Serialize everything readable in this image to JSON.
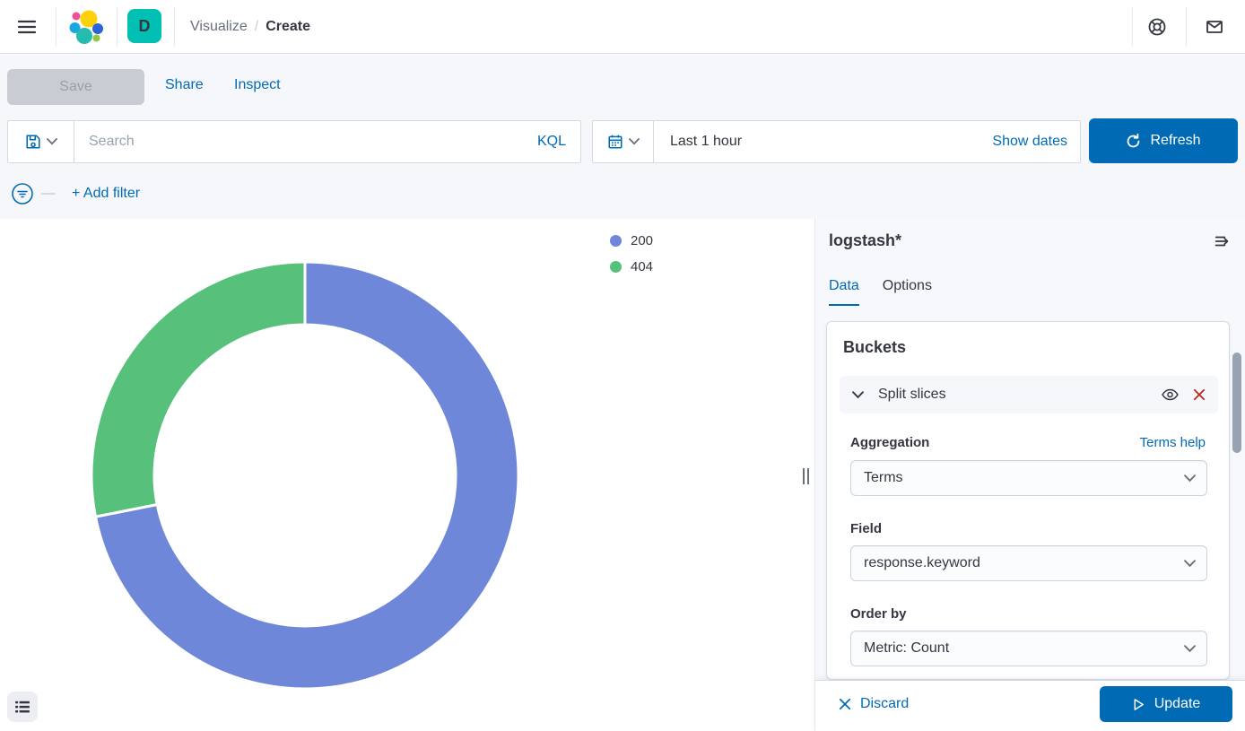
{
  "header": {
    "breadcrumb": {
      "parent": "Visualize",
      "separator": "/",
      "current": "Create"
    },
    "space_initial": "D"
  },
  "toolbar": {
    "save_label": "Save",
    "share_label": "Share",
    "inspect_label": "Inspect"
  },
  "query_bar": {
    "search_placeholder": "Search",
    "kql_label": "KQL",
    "time_range": "Last 1 hour",
    "show_dates_label": "Show dates",
    "refresh_label": "Refresh"
  },
  "filter_bar": {
    "add_filter_label": "+ Add filter"
  },
  "sidebar": {
    "title": "logstash*",
    "tabs": [
      {
        "label": "Data",
        "active": true
      },
      {
        "label": "Options",
        "active": false
      }
    ],
    "buckets": {
      "heading": "Buckets",
      "bucket_row_label": "Split slices",
      "fields": [
        {
          "label": "Aggregation",
          "value": "Terms",
          "help": "Terms help"
        },
        {
          "label": "Field",
          "value": "response.keyword"
        },
        {
          "label": "Order by",
          "value": "Metric: Count"
        }
      ]
    },
    "footer": {
      "discard_label": "Discard",
      "update_label": "Update"
    }
  },
  "chart_data": {
    "type": "pie",
    "donut": true,
    "title": "",
    "categories": [
      "200",
      "404"
    ],
    "values": [
      71.9,
      28.1
    ],
    "value_note": "percent share estimated from slice angles (blue ~259deg, green ~101deg)",
    "colors": [
      "#6f87d8",
      "#57c17b"
    ],
    "legend_position": "right",
    "start_angle_deg": 0,
    "clockwise": true,
    "slice_gap_stroke": "#ffffff"
  },
  "colors": {
    "primary": "#006BB4",
    "accent_teal": "#00BFB3",
    "danger": "#BD271E",
    "text": "#343741",
    "muted": "#69707D",
    "border": "#d3dae6",
    "panel_bg": "#f5f7fa"
  }
}
